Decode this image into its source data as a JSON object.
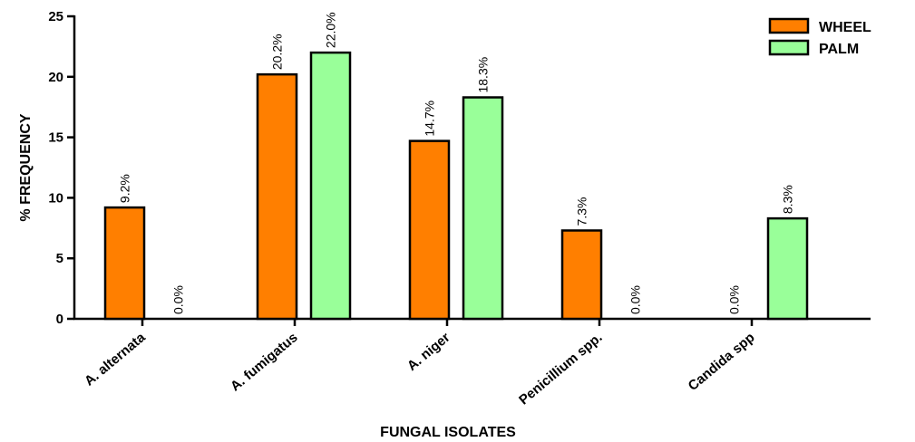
{
  "chart_data": {
    "type": "bar",
    "title": "",
    "xlabel": "FUNGAL ISOLATES",
    "ylabel": "% FREQUENCY",
    "categories": [
      "A. alternata",
      "A. fumigatus",
      "A. niger",
      "Penicillium spp.",
      "Candida spp"
    ],
    "series": [
      {
        "name": "WHEEL",
        "color": "#FF7F00",
        "values": [
          9.2,
          20.2,
          14.7,
          7.3,
          0.0
        ],
        "labels": [
          "9.2%",
          "20.2%",
          "14.7%",
          "7.3%",
          "0.0%"
        ]
      },
      {
        "name": "PALM",
        "color": "#99FF99",
        "values": [
          0.0,
          22.0,
          18.3,
          0.0,
          8.3
        ],
        "labels": [
          "0.0%",
          "22.0%",
          "18.3%",
          "0.0%",
          "8.3%"
        ]
      }
    ],
    "ylim": [
      0,
      25
    ],
    "yticks": [
      0,
      5,
      10,
      15,
      20,
      25
    ],
    "grid": false,
    "legend_position": "top-right"
  }
}
